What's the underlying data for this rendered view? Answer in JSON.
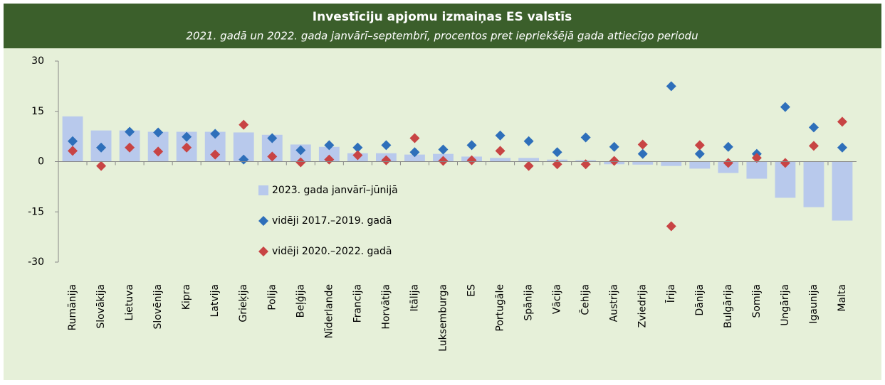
{
  "chart_data": {
    "type": "bar",
    "title": "Investīciju apjomu izmaiņas ES valstīs",
    "subtitle": "2021. gadā un 2022. gada janvārī–septembrī, procentos pret iepriekšējā gada attiecīgo periodu",
    "categories": [
      "Rumānija",
      "Slovākija",
      "Lietuva",
      "Slovēnija",
      "Kipra",
      "Latvija",
      "Grieķija",
      "Polija",
      "Beļģija",
      "Nīderlande",
      "Francija",
      "Horvātija",
      "Itālija",
      "Luksemburga",
      "ES",
      "Portugāle",
      "Spānija",
      "Vācija",
      "Čehija",
      "Austrija",
      "Zviedrija",
      "Īrija",
      "Dānija",
      "Bulgārija",
      "Somija",
      "Ungārija",
      "Igaunija",
      "Malta"
    ],
    "series": [
      {
        "name": "2023. gada janvārī–jūnijā",
        "type": "bar",
        "color": "#b8c9ec",
        "values": [
          13.5,
          9.3,
          9.3,
          8.9,
          8.9,
          8.9,
          8.7,
          8.0,
          5.1,
          4.4,
          2.5,
          2.5,
          2.1,
          2.3,
          1.5,
          1.1,
          1.1,
          0.6,
          0.4,
          -0.8,
          -0.9,
          -1.3,
          -2.1,
          -3.4,
          -5.1,
          -10.8,
          -13.6,
          -17.6
        ]
      },
      {
        "name": "vidēji 2017.–2019. gadā",
        "type": "scatter",
        "color": "#2e6fba",
        "values": [
          6.1,
          4.2,
          8.9,
          8.7,
          7.4,
          8.3,
          0.6,
          7.0,
          3.4,
          4.9,
          4.2,
          4.9,
          2.8,
          3.6,
          4.9,
          7.8,
          6.1,
          2.8,
          7.2,
          4.4,
          2.3,
          22.5,
          2.3,
          4.4,
          2.3,
          16.3,
          10.2,
          4.2
        ]
      },
      {
        "name": "vidēji 2020.–2022. gadā",
        "type": "scatter",
        "color": "#c84444",
        "values": [
          3.2,
          -1.3,
          4.2,
          3.0,
          4.2,
          2.1,
          11.0,
          1.5,
          -0.2,
          0.6,
          1.9,
          0.4,
          7.0,
          0.2,
          0.4,
          3.2,
          -1.3,
          -0.8,
          -0.8,
          0.2,
          5.1,
          -19.3,
          4.9,
          -0.4,
          1.1,
          -0.4,
          4.7,
          11.9
        ]
      }
    ],
    "ylim": [
      -30,
      30
    ],
    "yticks": [
      30,
      15,
      0,
      -15,
      -30
    ]
  }
}
